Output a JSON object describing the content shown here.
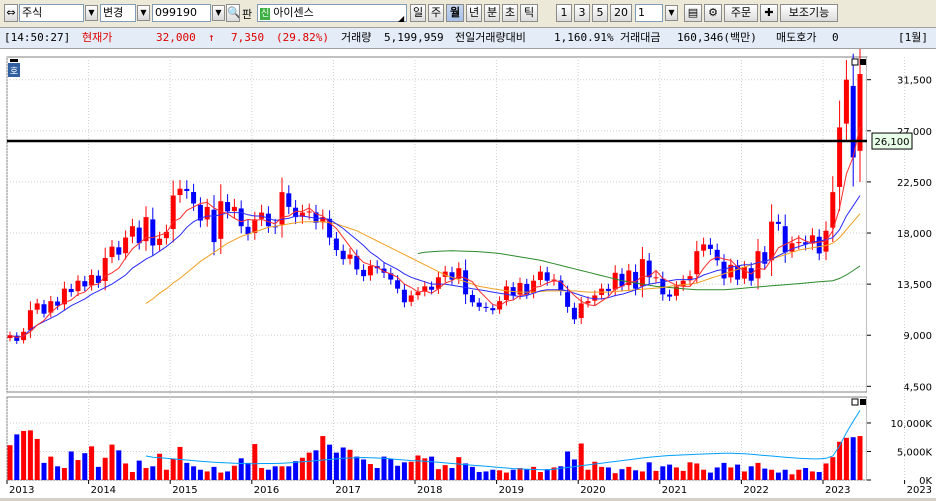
{
  "toolbar": {
    "market": "주식",
    "mode": "변경",
    "code": "099190",
    "code_prefix_label": "판",
    "new_badge": "신",
    "name": "아이센스",
    "periods": [
      "일",
      "주",
      "월",
      "년",
      "분",
      "초",
      "틱"
    ],
    "active_period": "월",
    "intervals": [
      "1",
      "3",
      "5",
      "20"
    ],
    "count_value": "1",
    "order_label": "주문",
    "aux_label": "보조기능"
  },
  "quote": {
    "time": "[14:50:27]",
    "price_label": "현재가",
    "price": "32,000",
    "arrow": "↑",
    "change": "7,350",
    "change_pct": "(29.82%)",
    "volume_label": "거래량",
    "volume": "5,199,959",
    "prev_ratio_label": "전일거래량대비",
    "prev_ratio": "1,160.91%",
    "amount_label": "거래대금",
    "amount": "160,346(백만)",
    "ask_label": "매도호가",
    "ask": "0",
    "period_tag": "[1월]"
  },
  "chart_panel": {
    "badge": "호",
    "hline_label": "26,100"
  },
  "colors": {
    "up": "#ff0000",
    "down": "#0000ff",
    "ma5": "#ff2a2a",
    "ma10": "#2a2aff",
    "ma20": "#f0a020",
    "ma60": "#2a8a2a",
    "hline": "#000000",
    "vol_ma": "#00a0ff"
  },
  "chart_data": [
    {
      "type": "candlestick",
      "interval": "monthly",
      "y_ticks": [
        "31,500",
        "27,000",
        "22,500",
        "18,000",
        "13,500",
        "9,000",
        "4,500"
      ],
      "y_tick_values": [
        31500,
        27000,
        22500,
        18000,
        13500,
        9000,
        4500
      ],
      "ylim": [
        4000,
        33500
      ],
      "x_labels": [
        "2013",
        "2014",
        "2015",
        "2016",
        "2017",
        "2018",
        "2019",
        "2020",
        "2021",
        "2022",
        "2023",
        "2023"
      ],
      "x_label_month_index": [
        0,
        12,
        24,
        36,
        48,
        60,
        72,
        84,
        96,
        108,
        120,
        132
      ],
      "horizontal_line": 26100,
      "closes": [
        9000,
        8500,
        9300,
        11200,
        11800,
        10900,
        12000,
        11600,
        13100,
        12800,
        13800,
        13300,
        14300,
        13600,
        15800,
        16800,
        16100,
        17600,
        18600,
        17100,
        19400,
        16900,
        17500,
        18100,
        21300,
        21900,
        21700,
        20600,
        19100,
        20300,
        17200,
        20800,
        19900,
        20300,
        18600,
        17900,
        19200,
        19800,
        18600,
        18500,
        21600,
        20300,
        19400,
        19800,
        19900,
        18900,
        19400,
        17600,
        16500,
        15700,
        16100,
        14800,
        14200,
        15100,
        14900,
        14500,
        13900,
        13100,
        11900,
        12500,
        12800,
        13300,
        13000,
        14100,
        14600,
        13900,
        14900,
        12600,
        11900,
        11500,
        11400,
        11200,
        12000,
        13300,
        12500,
        13600,
        12600,
        13800,
        14600,
        13800,
        13900,
        12900,
        11500,
        10400,
        11800,
        12000,
        12500,
        13100,
        12900,
        14500,
        13300,
        14700,
        13100,
        15700,
        14100,
        14100,
        12600,
        12400,
        13300,
        13800,
        14200,
        16400,
        17000,
        16600,
        15600,
        14000,
        15200,
        13900,
        15000,
        13800,
        16400,
        15300,
        19000,
        18800,
        16300,
        17100,
        17200,
        17000,
        17800,
        16200,
        18200,
        21600,
        27300,
        31500,
        24650,
        32000
      ],
      "ma5": [
        9000,
        8800,
        8950,
        9300,
        9900,
        10300,
        11000,
        11500,
        11900,
        12100,
        12600,
        12800,
        13400,
        13500,
        14200,
        14500,
        14900,
        15800,
        16600,
        17100,
        17600,
        17600,
        17800,
        18000,
        19000,
        19300,
        20000,
        20300,
        20600,
        20700,
        20200,
        19900,
        19700,
        19300,
        19000,
        19200,
        19100,
        19200,
        19000,
        18800,
        19400,
        19500,
        19900,
        19900,
        20200,
        19700,
        19500,
        18900,
        18400,
        17600,
        16800,
        16000,
        15400,
        15200,
        15000,
        14600,
        14400,
        14100,
        13500,
        13200,
        12800,
        12900,
        12700,
        13100,
        13600,
        13800,
        14200,
        14000,
        13700,
        12900,
        12300,
        11700,
        11600,
        12000,
        12100,
        12500,
        12600,
        13200,
        13300,
        13600,
        13800,
        13700,
        13100,
        12500,
        12000,
        11700,
        11600,
        12000,
        12400,
        13100,
        13300,
        13700,
        13700,
        14200,
        14200,
        14700,
        14000,
        13700,
        13400,
        13300,
        13300,
        14000,
        14900,
        15600,
        15900,
        15700,
        15600,
        15000,
        14700,
        14400,
        14900,
        14800,
        15700,
        16700,
        17000,
        17300,
        17600,
        17300,
        17100,
        17200,
        17300,
        18200,
        20200,
        23200,
        24700,
        27400
      ],
      "ma10": [
        9000,
        8800,
        8930,
        9500,
        9900,
        10200,
        10500,
        10800,
        11200,
        11600,
        11900,
        12200,
        12600,
        12900,
        13200,
        13500,
        13900,
        14300,
        14900,
        15300,
        15700,
        16000,
        16400,
        16800,
        17300,
        17800,
        18500,
        19000,
        19300,
        19500,
        19500,
        19600,
        19800,
        19800,
        19800,
        19600,
        19500,
        19500,
        19300,
        19100,
        19200,
        19300,
        19500,
        19500,
        19400,
        19300,
        19300,
        19200,
        18800,
        18400,
        17900,
        17400,
        16900,
        16300,
        15900,
        15400,
        15100,
        14800,
        14400,
        14100,
        13900,
        13700,
        13500,
        13500,
        13500,
        13400,
        13300,
        13200,
        13100,
        13000,
        12900,
        12800,
        12700,
        12600,
        12500,
        12400,
        12500,
        12700,
        12900,
        13000,
        13000,
        13000,
        12900,
        12700,
        12500,
        12300,
        12200,
        12200,
        12300,
        12500,
        12600,
        12800,
        13000,
        13300,
        13500,
        13600,
        13700,
        13800,
        13900,
        13900,
        13900,
        14000,
        14300,
        14500,
        14700,
        14800,
        15000,
        15100,
        15200,
        15200,
        15400,
        15500,
        15700,
        16000,
        16300,
        16600,
        16800,
        17000,
        17200,
        17300,
        17400,
        17600,
        18300,
        19500,
        20400,
        21300
      ],
      "ma20": [
        null,
        null,
        null,
        null,
        null,
        null,
        null,
        null,
        null,
        null,
        null,
        null,
        null,
        null,
        null,
        null,
        null,
        null,
        null,
        null,
        11800,
        12200,
        12700,
        13100,
        13600,
        14000,
        14500,
        15000,
        15500,
        15900,
        16300,
        16700,
        17100,
        17400,
        17700,
        17900,
        18100,
        18300,
        18500,
        18600,
        18700,
        18800,
        18900,
        19000,
        19000,
        19000,
        19000,
        18900,
        18800,
        18600,
        18400,
        18200,
        17900,
        17600,
        17300,
        17000,
        16700,
        16400,
        16100,
        15800,
        15500,
        15200,
        14900,
        14600,
        14300,
        14100,
        13900,
        13700,
        13500,
        13300,
        13200,
        13100,
        13000,
        12900,
        12850,
        12800,
        12800,
        12800,
        12850,
        12900,
        12900,
        12900,
        12900,
        12900,
        12850,
        12800,
        12800,
        12800,
        12800,
        12850,
        12900,
        12950,
        13000,
        13050,
        13100,
        13150,
        13200,
        13300,
        13400,
        13450,
        13500,
        13600,
        13800,
        14000,
        14200,
        14400,
        14600,
        14800,
        15000,
        15200,
        15400,
        15500,
        15700,
        15900,
        16100,
        16300,
        16500,
        16600,
        16700,
        16800,
        16900,
        17100,
        17600,
        18300,
        19000,
        19700
      ],
      "ma60": [
        null,
        null,
        null,
        null,
        null,
        null,
        null,
        null,
        null,
        null,
        null,
        null,
        null,
        null,
        null,
        null,
        null,
        null,
        null,
        null,
        null,
        null,
        null,
        null,
        null,
        null,
        null,
        null,
        null,
        null,
        null,
        null,
        null,
        null,
        null,
        null,
        null,
        null,
        null,
        null,
        null,
        null,
        null,
        null,
        null,
        null,
        null,
        null,
        null,
        null,
        null,
        null,
        null,
        null,
        null,
        null,
        null,
        null,
        null,
        null,
        16200,
        16300,
        16350,
        16400,
        16420,
        16430,
        16420,
        16400,
        16380,
        16350,
        16300,
        16250,
        16200,
        16100,
        16000,
        15900,
        15800,
        15700,
        15600,
        15450,
        15300,
        15150,
        15000,
        14850,
        14700,
        14550,
        14400,
        14250,
        14100,
        13950,
        13800,
        13700,
        13600,
        13500,
        13400,
        13300,
        13250,
        13200,
        13150,
        13100,
        13050,
        13000,
        13000,
        13000,
        13000,
        13000,
        13050,
        13100,
        13150,
        13200,
        13250,
        13300,
        13350,
        13400,
        13450,
        13500,
        13550,
        13600,
        13650,
        13700,
        13750,
        13800,
        14000,
        14300,
        14700,
        15100
      ],
      "volume_y_ticks": [
        "10,000K",
        "5,000K",
        "0K"
      ],
      "volume_y_tick_values": [
        10000,
        5000,
        0
      ],
      "volume_ylim": [
        0,
        13500
      ],
      "volumes": [
        6100,
        8000,
        8600,
        8700,
        7200,
        3000,
        4100,
        2400,
        2100,
        5000,
        3500,
        4700,
        5900,
        2300,
        3900,
        6200,
        5200,
        2900,
        1400,
        3400,
        2100,
        2400,
        4600,
        1800,
        3700,
        5800,
        3000,
        2400,
        1800,
        1500,
        2300,
        1300,
        1500,
        2500,
        3800,
        3000,
        6300,
        2100,
        1800,
        2400,
        2400,
        2400,
        3300,
        3900,
        4800,
        5200,
        7700,
        6200,
        4800,
        5700,
        5300,
        4100,
        3600,
        2800,
        2100,
        4100,
        3700,
        2500,
        3100,
        3200,
        4300,
        3800,
        4100,
        1900,
        2600,
        2100,
        4000,
        2900,
        2300,
        1400,
        1500,
        1800,
        1700,
        1300,
        1800,
        2100,
        1900,
        2300,
        1400,
        1900,
        2200,
        2400,
        5000,
        3600,
        6400,
        1800,
        3200,
        2300,
        2200,
        1200,
        1900,
        2300,
        1700,
        1500,
        3100,
        1600,
        2400,
        2700,
        2200,
        1600,
        3100,
        2900,
        1800,
        1300,
        2200,
        3000,
        2200,
        2700,
        1500,
        2400,
        3000,
        2000,
        1800,
        1300,
        1800,
        1000,
        1800,
        2100,
        1500,
        1400,
        2900,
        4000,
        6700,
        7400,
        7500,
        7700
      ],
      "volume_ma": [
        null,
        null,
        null,
        null,
        null,
        null,
        null,
        null,
        null,
        null,
        null,
        null,
        null,
        null,
        null,
        null,
        null,
        null,
        null,
        null,
        4200,
        4000,
        3900,
        3800,
        3700,
        3600,
        3500,
        3400,
        3300,
        3200,
        3100,
        3050,
        3000,
        2950,
        2900,
        2850,
        2850,
        2900,
        2900,
        2900,
        2950,
        3000,
        3100,
        3200,
        3300,
        3400,
        3500,
        3600,
        3700,
        3800,
        3850,
        3900,
        3950,
        3900,
        3850,
        3800,
        3700,
        3600,
        3500,
        3400,
        3350,
        3300,
        3200,
        3100,
        3000,
        2900,
        2800,
        2700,
        2600,
        2500,
        2400,
        2300,
        2200,
        2100,
        2000,
        1950,
        1900,
        1850,
        1800,
        1800,
        1900,
        2050,
        2200,
        2350,
        2500,
        2650,
        2800,
        2950,
        3100,
        3250,
        3400,
        3550,
        3700,
        3850,
        4000,
        4100,
        4200,
        4300,
        4350,
        4400,
        4450,
        4500,
        4550,
        4600,
        4650,
        4700,
        4700,
        4650,
        4600,
        4500,
        4400,
        4300,
        4200,
        4100,
        4000,
        3900,
        3800,
        3750,
        3700,
        3700,
        3800,
        4200,
        6000,
        8300,
        10300,
        12200
      ]
    }
  ]
}
